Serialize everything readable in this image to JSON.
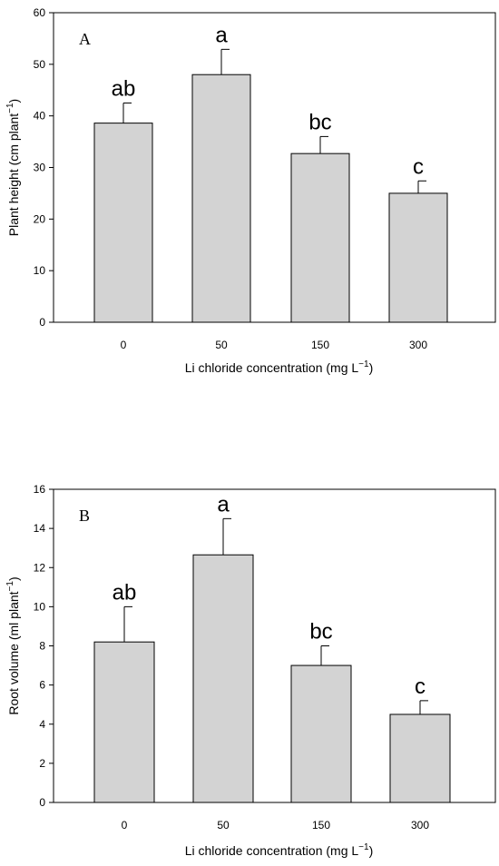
{
  "chart_data": [
    {
      "type": "bar",
      "panel_label": "A",
      "categories": [
        "0",
        "50",
        "150",
        "300"
      ],
      "values": [
        38.6,
        48.0,
        32.7,
        25.0
      ],
      "errors": [
        3.9,
        4.9,
        3.3,
        2.4
      ],
      "significance": [
        "ab",
        "a",
        "bc",
        "c"
      ],
      "xlabel": "Li chloride concentration (mg L",
      "xlabel_sup": "−1",
      "xlabel_end": ")",
      "ylabel": "Plant height (cm plant",
      "ylabel_sup": "−1",
      "ylabel_end": ")",
      "ylim": [
        0,
        60
      ],
      "yticks": [
        "0",
        "10",
        "20",
        "30",
        "40",
        "50",
        "60"
      ],
      "bar_color": "#d3d3d3",
      "grid": false
    },
    {
      "type": "bar",
      "panel_label": "B",
      "categories": [
        "0",
        "50",
        "150",
        "300"
      ],
      "values": [
        8.2,
        12.65,
        7.0,
        4.5
      ],
      "errors": [
        1.8,
        1.85,
        1.0,
        0.7
      ],
      "significance": [
        "ab",
        "a",
        "bc",
        "c"
      ],
      "xlabel": "Li chloride concentration (mg L",
      "xlabel_sup": "−1",
      "xlabel_end": ")",
      "ylabel": "Root volume (ml plant",
      "ylabel_sup": "−1",
      "ylabel_end": ")",
      "ylim": [
        0,
        16
      ],
      "yticks": [
        "0",
        "2",
        "4",
        "6",
        "8",
        "10",
        "12",
        "14",
        "16"
      ],
      "bar_color": "#d3d3d3",
      "grid": false
    }
  ]
}
